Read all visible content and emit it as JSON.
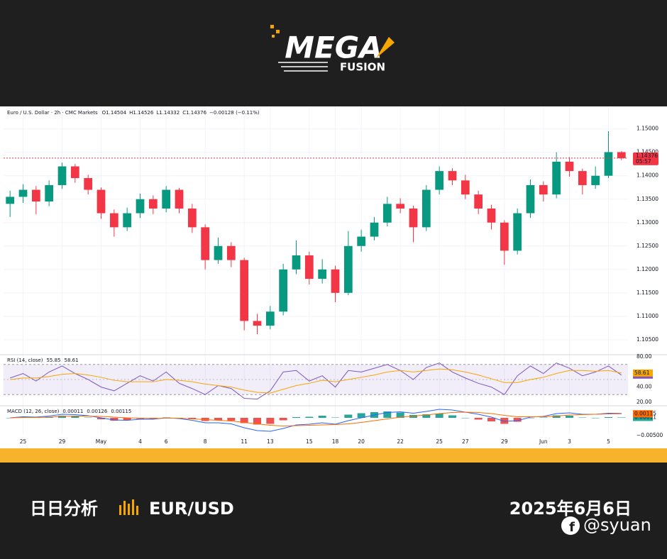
{
  "header": {
    "logo": "MEGA",
    "logo_sub": "FUSION"
  },
  "chart_data": [
    {
      "type": "candlestick",
      "title": "Euro / U.S. Dollar · 2h · CMC Markets",
      "quote": [
        {
          "label": "O",
          "value": 1.14504
        },
        {
          "label": "H",
          "value": 1.14526
        },
        {
          "label": "L",
          "value": 1.14332
        },
        {
          "label": "C",
          "value": 1.14376
        }
      ],
      "change": {
        "value": -0.00128,
        "label": "−0.00128 (−0.11%)"
      },
      "last_price": 1.14376,
      "countdown": "05:57",
      "categories": [
        null,
        "25",
        null,
        null,
        "29",
        null,
        null,
        "May",
        null,
        null,
        "4",
        null,
        "6",
        null,
        null,
        "8",
        null,
        null,
        "11",
        null,
        "13",
        null,
        null,
        "15",
        null,
        "18",
        null,
        "20",
        null,
        null,
        "22",
        null,
        null,
        "25",
        null,
        "27",
        null,
        null,
        "29",
        null,
        null,
        "Jun",
        null,
        "3",
        null,
        null,
        "5",
        null
      ],
      "open": [
        1.134,
        1.1355,
        1.137,
        1.1345,
        1.138,
        1.142,
        1.1395,
        1.137,
        1.132,
        1.129,
        1.132,
        1.135,
        1.133,
        1.137,
        1.133,
        1.129,
        1.122,
        1.125,
        1.122,
        1.109,
        1.108,
        1.111,
        1.12,
        1.123,
        1.118,
        1.12,
        1.115,
        1.125,
        1.127,
        1.13,
        1.134,
        1.133,
        1.129,
        1.137,
        1.141,
        1.139,
        1.136,
        1.133,
        1.13,
        1.124,
        1.132,
        1.138,
        1.136,
        1.143,
        1.141,
        1.138,
        1.14,
        1.14504
      ],
      "high": [
        1.1368,
        1.1382,
        1.1378,
        1.139,
        1.1428,
        1.1425,
        1.1402,
        1.1375,
        1.1328,
        1.1332,
        1.1362,
        1.1358,
        1.1378,
        1.1374,
        1.134,
        1.1296,
        1.1268,
        1.1258,
        1.1225,
        1.1105,
        1.1122,
        1.1212,
        1.1262,
        1.1238,
        1.1222,
        1.1208,
        1.1282,
        1.1285,
        1.1312,
        1.1355,
        1.1352,
        1.1336,
        1.138,
        1.142,
        1.1416,
        1.1402,
        1.1368,
        1.1338,
        1.1305,
        1.133,
        1.1392,
        1.1388,
        1.145,
        1.144,
        1.1415,
        1.142,
        1.1495,
        1.14526
      ],
      "low": [
        1.1312,
        1.1342,
        1.1318,
        1.1335,
        1.1372,
        1.1385,
        1.136,
        1.1308,
        1.127,
        1.1282,
        1.131,
        1.1318,
        1.1322,
        1.132,
        1.1278,
        1.12,
        1.1212,
        1.1205,
        1.107,
        1.1062,
        1.1072,
        1.1102,
        1.119,
        1.1168,
        1.117,
        1.113,
        1.1145,
        1.1238,
        1.1262,
        1.1292,
        1.132,
        1.1258,
        1.1282,
        1.136,
        1.138,
        1.135,
        1.1318,
        1.1285,
        1.121,
        1.1232,
        1.131,
        1.1345,
        1.1352,
        1.1398,
        1.136,
        1.1372,
        1.1395,
        1.14332
      ],
      "close": [
        1.1355,
        1.137,
        1.1345,
        1.138,
        1.142,
        1.1395,
        1.137,
        1.132,
        1.129,
        1.132,
        1.135,
        1.133,
        1.137,
        1.133,
        1.129,
        1.122,
        1.125,
        1.122,
        1.109,
        1.108,
        1.111,
        1.12,
        1.123,
        1.118,
        1.12,
        1.115,
        1.125,
        1.127,
        1.13,
        1.134,
        1.133,
        1.129,
        1.137,
        1.141,
        1.139,
        1.136,
        1.133,
        1.13,
        1.124,
        1.132,
        1.138,
        1.136,
        1.143,
        1.141,
        1.138,
        1.14,
        1.14504,
        1.14376
      ],
      "up_color": "#089981",
      "down_color": "#f23645",
      "ylim": [
        1.1018,
        1.1548
      ],
      "yticks": [
        {
          "value": 1.105,
          "label": "1.10500"
        },
        {
          "value": 1.11,
          "label": "1.11000"
        },
        {
          "value": 1.115,
          "label": "1.11500"
        },
        {
          "value": 1.12,
          "label": "1.12000"
        },
        {
          "value": 1.125,
          "label": "1.12500"
        },
        {
          "value": 1.13,
          "label": "1.13000"
        },
        {
          "value": 1.135,
          "label": "1.13500"
        },
        {
          "value": 1.14,
          "label": "1.14000"
        },
        {
          "value": 1.145,
          "label": "1.14500"
        },
        {
          "value": 1.15,
          "label": "1.15000"
        }
      ],
      "grid": true
    },
    {
      "type": "line",
      "title": "RSI (14, close)",
      "series": [
        {
          "color": "#7e57c2",
          "tag": true,
          "values": [
            52,
            58,
            48,
            60,
            68,
            58,
            50,
            40,
            35,
            45,
            55,
            48,
            60,
            45,
            38,
            30,
            42,
            38,
            25,
            24,
            35,
            60,
            62,
            48,
            55,
            40,
            62,
            60,
            65,
            70,
            62,
            50,
            66,
            72,
            60,
            52,
            45,
            40,
            30,
            55,
            68,
            58,
            72,
            65,
            55,
            60,
            68,
            55.85
          ]
        },
        {
          "color": "#f7a600",
          "tag": true,
          "values": [
            50,
            52,
            52,
            54,
            57,
            58,
            56,
            53,
            49,
            47,
            47,
            47,
            50,
            49,
            47,
            44,
            42,
            40,
            36,
            33,
            32,
            37,
            42,
            45,
            49,
            47,
            50,
            53,
            56,
            60,
            62,
            60,
            62,
            64,
            63,
            60,
            56,
            51,
            46,
            46,
            50,
            53,
            58,
            62,
            62,
            61,
            62,
            58.61
          ]
        }
      ],
      "bands": [
        30,
        70
      ],
      "midline": 50,
      "band_color": "#7e57c2",
      "ylim": [
        17,
        83
      ],
      "yticks": [
        {
          "value": 80,
          "label": "80.00"
        },
        {
          "value": 40,
          "label": "40.00"
        },
        {
          "value": 20,
          "label": "20.00"
        }
      ]
    },
    {
      "type": "line",
      "title": "MACD (12, 26, close)",
      "series": [
        {
          "style": "bar",
          "color": "#26a69a",
          "negative_color": "#ef5350",
          "tag": true,
          "values": [
            0,
            0.0002,
            0.0001,
            0.0003,
            0.0006,
            0.0004,
            0.0001,
            -0.0004,
            -0.0008,
            -0.0007,
            -0.0003,
            -0.0002,
            0.0001,
            -0.0001,
            -0.0004,
            -0.0009,
            -0.0007,
            -0.0008,
            -0.0015,
            -0.0019,
            -0.0017,
            -0.0007,
            0.0002,
            0.0003,
            0.0006,
            0.0001,
            0.0009,
            0.0013,
            0.0016,
            0.0018,
            0.0015,
            0.0008,
            0.001,
            0.0012,
            0.0007,
            0,
            -0.0005,
            -0.001,
            -0.0017,
            -0.0011,
            -0.0001,
            0.0001,
            0.0007,
            0.0006,
            0.0001,
            0,
            0.0002,
            0.00011
          ]
        },
        {
          "color": "#2962ff",
          "values": [
            0,
            0.0003,
            0.0002,
            0.0005,
            0.001,
            0.0009,
            0.0006,
            0,
            -0.0006,
            -0.0007,
            -0.0004,
            -0.0004,
            0,
            -0.0002,
            -0.0007,
            -0.0014,
            -0.0014,
            -0.0017,
            -0.0028,
            -0.0036,
            -0.0038,
            -0.003,
            -0.002,
            -0.0018,
            -0.0014,
            -0.0018,
            -0.0008,
            0,
            0.0008,
            0.0015,
            0.0017,
            0.0013,
            0.0018,
            0.0024,
            0.0022,
            0.0016,
            0.001,
            0.0002,
            -0.001,
            -0.0008,
            0.0002,
            0.0004,
            0.0012,
            0.0014,
            0.001,
            0.001,
            0.0013,
            0.00126
          ]
        },
        {
          "color": "#ff6d00",
          "tag": true,
          "values": [
            0,
            0.0001,
            0.0001,
            0.0002,
            0.0004,
            0.0005,
            0.0005,
            0.0004,
            0.0002,
            0,
            -0.0001,
            -0.0002,
            -0.0001,
            -0.0001,
            -0.0003,
            -0.0005,
            -0.0007,
            -0.0009,
            -0.0013,
            -0.0017,
            -0.0021,
            -0.0023,
            -0.0022,
            -0.0021,
            -0.002,
            -0.0019,
            -0.0017,
            -0.0013,
            -0.0008,
            -0.0003,
            0.0002,
            0.0005,
            0.0008,
            0.0012,
            0.0015,
            0.0016,
            0.0015,
            0.0012,
            0.0007,
            0.0003,
            0.0003,
            0.0003,
            0.0005,
            0.0008,
            0.0009,
            0.001,
            0.0011,
            0.00115
          ]
        }
      ],
      "ylim": [
        -0.0086,
        0.0034
      ],
      "yticks": [
        {
          "value": -0.005,
          "label": "−0.00500"
        }
      ]
    }
  ],
  "footer": {
    "title": "日日分析",
    "pair": "EUR/USD",
    "date": "2025年6月6日",
    "handle": "@syuan"
  }
}
